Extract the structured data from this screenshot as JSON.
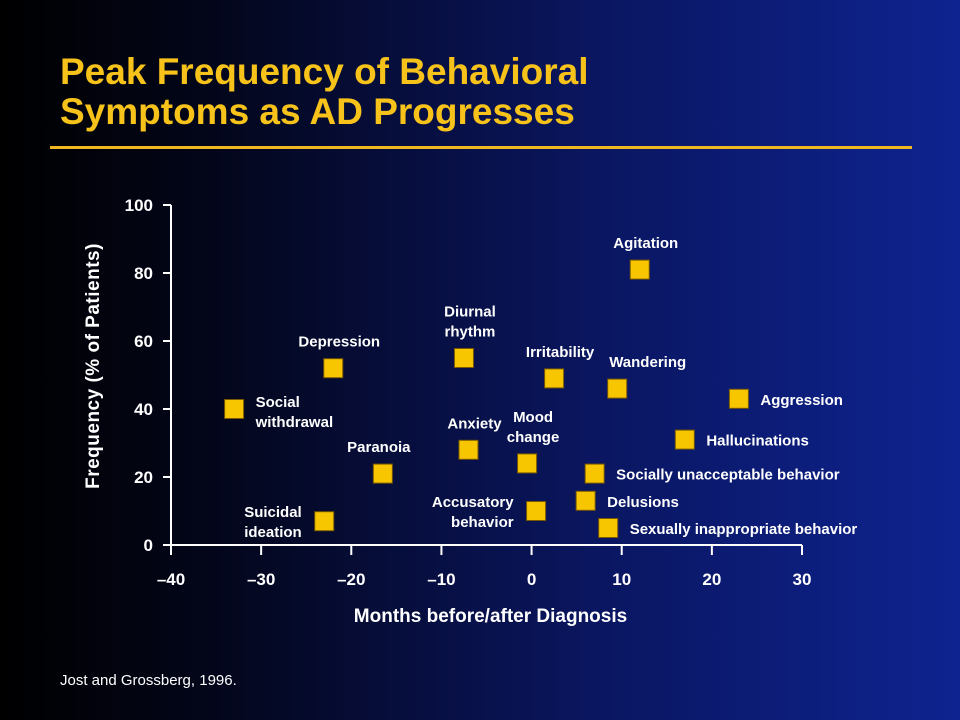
{
  "title_lines": [
    "Peak Frequency of Behavioral",
    "Symptoms as AD Progresses"
  ],
  "citation": "Jost and Grossberg, 1996.",
  "colors": {
    "title": "#f7c31a",
    "rule": "#f0b820",
    "marker": "#f8c600",
    "marker_border": "#7a5a00",
    "text": "#ffffff"
  },
  "chart_data": {
    "type": "scatter",
    "xlabel": "Months before/after Diagnosis",
    "ylabel": "Frequency (% of Patients)",
    "xlim": [
      -40,
      30
    ],
    "ylim": [
      0,
      100
    ],
    "xticks": [
      -40,
      -30,
      -20,
      -10,
      0,
      10,
      20,
      30
    ],
    "xtick_labels": [
      "–40",
      "–30",
      "–20",
      "–10",
      "0",
      "10",
      "20",
      "30"
    ],
    "yticks": [
      0,
      20,
      40,
      60,
      80,
      100
    ],
    "ytick_labels": [
      "0",
      "20",
      "40",
      "60",
      "80",
      "100"
    ],
    "grid": false,
    "points": [
      {
        "label": [
          "Social",
          "withdrawal"
        ],
        "x": -33,
        "y": 40,
        "label_side": "right"
      },
      {
        "label": [
          "Depression"
        ],
        "x": -22,
        "y": 52,
        "label_side": "above"
      },
      {
        "label": [
          "Paranoia"
        ],
        "x": -16.5,
        "y": 21,
        "label_side": "above-left"
      },
      {
        "label": [
          "Suicidal",
          "ideation"
        ],
        "x": -23,
        "y": 7,
        "label_side": "left"
      },
      {
        "label": [
          "Diurnal",
          "rhythm"
        ],
        "x": -7.5,
        "y": 55,
        "label_side": "above"
      },
      {
        "label": [
          "Anxiety"
        ],
        "x": -7,
        "y": 28,
        "label_side": "above"
      },
      {
        "label": [
          "Accusatory",
          "behavior"
        ],
        "x": 0.5,
        "y": 10,
        "label_side": "left"
      },
      {
        "label": [
          "Mood",
          "change"
        ],
        "x": -0.5,
        "y": 24,
        "label_side": "above"
      },
      {
        "label": [
          "Irritability"
        ],
        "x": 2.5,
        "y": 49,
        "label_side": "above"
      },
      {
        "label": [
          "Agitation"
        ],
        "x": 12,
        "y": 81,
        "label_side": "above"
      },
      {
        "label": [
          "Wandering"
        ],
        "x": 9.5,
        "y": 46,
        "label_side": "above-right"
      },
      {
        "label": [
          "Aggression"
        ],
        "x": 23,
        "y": 43,
        "label_side": "right"
      },
      {
        "label": [
          "Hallucinations"
        ],
        "x": 17,
        "y": 31,
        "label_side": "right"
      },
      {
        "label": [
          "Socially unacceptable behavior"
        ],
        "x": 7,
        "y": 21,
        "label_side": "right"
      },
      {
        "label": [
          "Delusions"
        ],
        "x": 6,
        "y": 13,
        "label_side": "right"
      },
      {
        "label": [
          "Sexually inappropriate behavior"
        ],
        "x": 8.5,
        "y": 5,
        "label_side": "right"
      }
    ]
  }
}
